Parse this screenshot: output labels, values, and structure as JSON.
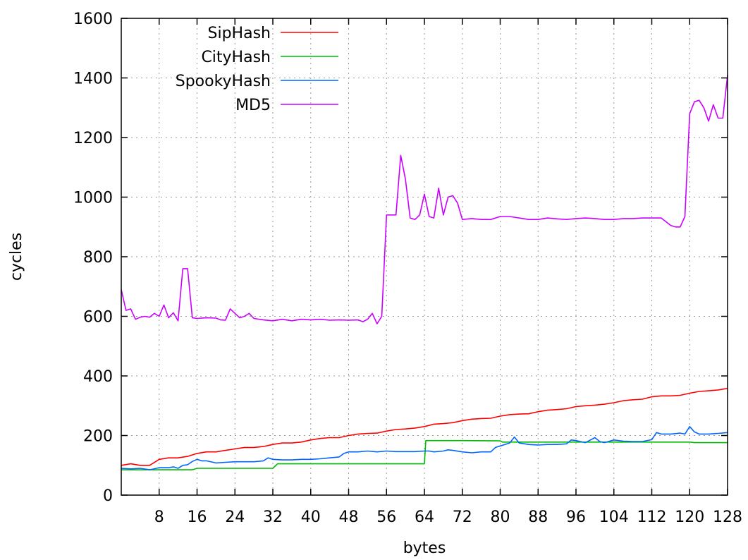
{
  "chart_data": {
    "type": "line",
    "xlabel": "bytes",
    "ylabel": "cycles",
    "xlim": [
      0,
      128
    ],
    "ylim": [
      0,
      1600
    ],
    "xticks": [
      8,
      16,
      24,
      32,
      40,
      48,
      56,
      64,
      72,
      80,
      88,
      96,
      104,
      112,
      120,
      128
    ],
    "yticks": [
      0,
      200,
      400,
      600,
      800,
      1000,
      1200,
      1400,
      1600
    ],
    "grid": true,
    "legend_position": "top-left",
    "series": [
      {
        "name": "SipHash",
        "color": "#ff0000",
        "points": [
          [
            0,
            100
          ],
          [
            2,
            105
          ],
          [
            4,
            100
          ],
          [
            6,
            100
          ],
          [
            8,
            120
          ],
          [
            10,
            125
          ],
          [
            12,
            125
          ],
          [
            14,
            130
          ],
          [
            16,
            140
          ],
          [
            18,
            145
          ],
          [
            20,
            145
          ],
          [
            22,
            150
          ],
          [
            24,
            155
          ],
          [
            26,
            160
          ],
          [
            28,
            160
          ],
          [
            30,
            163
          ],
          [
            32,
            170
          ],
          [
            34,
            175
          ],
          [
            36,
            175
          ],
          [
            38,
            178
          ],
          [
            40,
            185
          ],
          [
            42,
            190
          ],
          [
            44,
            193
          ],
          [
            46,
            193
          ],
          [
            48,
            200
          ],
          [
            50,
            205
          ],
          [
            52,
            207
          ],
          [
            54,
            208
          ],
          [
            56,
            215
          ],
          [
            58,
            220
          ],
          [
            60,
            222
          ],
          [
            62,
            225
          ],
          [
            64,
            230
          ],
          [
            66,
            238
          ],
          [
            68,
            240
          ],
          [
            70,
            243
          ],
          [
            72,
            250
          ],
          [
            74,
            255
          ],
          [
            76,
            257
          ],
          [
            78,
            258
          ],
          [
            80,
            265
          ],
          [
            82,
            270
          ],
          [
            84,
            272
          ],
          [
            86,
            273
          ],
          [
            88,
            280
          ],
          [
            90,
            285
          ],
          [
            92,
            287
          ],
          [
            94,
            290
          ],
          [
            96,
            297
          ],
          [
            98,
            300
          ],
          [
            100,
            302
          ],
          [
            102,
            305
          ],
          [
            104,
            310
          ],
          [
            106,
            317
          ],
          [
            108,
            320
          ],
          [
            110,
            322
          ],
          [
            112,
            330
          ],
          [
            114,
            333
          ],
          [
            116,
            333
          ],
          [
            118,
            335
          ],
          [
            120,
            342
          ],
          [
            122,
            348
          ],
          [
            124,
            350
          ],
          [
            126,
            353
          ],
          [
            128,
            358
          ]
        ]
      },
      {
        "name": "CityHash",
        "color": "#00bb00",
        "points": [
          [
            0,
            85
          ],
          [
            8,
            85
          ],
          [
            15,
            85
          ],
          [
            16,
            90
          ],
          [
            24,
            90
          ],
          [
            32,
            90
          ],
          [
            33,
            105
          ],
          [
            40,
            105
          ],
          [
            48,
            105
          ],
          [
            56,
            105
          ],
          [
            64,
            105
          ],
          [
            64.3,
            183
          ],
          [
            72,
            183
          ],
          [
            80,
            182
          ],
          [
            80.5,
            178
          ],
          [
            88,
            178
          ],
          [
            96,
            178
          ],
          [
            104,
            178
          ],
          [
            112,
            178
          ],
          [
            120,
            178
          ],
          [
            121,
            176
          ],
          [
            128,
            176
          ]
        ]
      },
      {
        "name": "SpookyHash",
        "color": "#0066ff",
        "points": [
          [
            0,
            90
          ],
          [
            2,
            88
          ],
          [
            4,
            90
          ],
          [
            6,
            85
          ],
          [
            8,
            92
          ],
          [
            10,
            92
          ],
          [
            11,
            95
          ],
          [
            12,
            90
          ],
          [
            13,
            100
          ],
          [
            14,
            102
          ],
          [
            15,
            113
          ],
          [
            16,
            120
          ],
          [
            17,
            115
          ],
          [
            18,
            115
          ],
          [
            20,
            108
          ],
          [
            22,
            110
          ],
          [
            24,
            112
          ],
          [
            26,
            112
          ],
          [
            28,
            112
          ],
          [
            30,
            115
          ],
          [
            31,
            125
          ],
          [
            32,
            120
          ],
          [
            34,
            118
          ],
          [
            36,
            118
          ],
          [
            38,
            120
          ],
          [
            40,
            120
          ],
          [
            42,
            122
          ],
          [
            44,
            125
          ],
          [
            46,
            128
          ],
          [
            47,
            140
          ],
          [
            48,
            145
          ],
          [
            50,
            145
          ],
          [
            52,
            148
          ],
          [
            54,
            145
          ],
          [
            56,
            148
          ],
          [
            58,
            146
          ],
          [
            60,
            146
          ],
          [
            62,
            146
          ],
          [
            64,
            148
          ],
          [
            65,
            148
          ],
          [
            66,
            145
          ],
          [
            68,
            148
          ],
          [
            69,
            152
          ],
          [
            70,
            150
          ],
          [
            72,
            145
          ],
          [
            74,
            142
          ],
          [
            76,
            145
          ],
          [
            78,
            145
          ],
          [
            79,
            160
          ],
          [
            80,
            165
          ],
          [
            82,
            175
          ],
          [
            83,
            195
          ],
          [
            84,
            175
          ],
          [
            86,
            170
          ],
          [
            88,
            168
          ],
          [
            90,
            170
          ],
          [
            92,
            170
          ],
          [
            94,
            172
          ],
          [
            95,
            185
          ],
          [
            96,
            183
          ],
          [
            98,
            176
          ],
          [
            100,
            193
          ],
          [
            101,
            180
          ],
          [
            102,
            176
          ],
          [
            104,
            185
          ],
          [
            106,
            181
          ],
          [
            108,
            180
          ],
          [
            110,
            180
          ],
          [
            112,
            186
          ],
          [
            113,
            210
          ],
          [
            114,
            205
          ],
          [
            116,
            205
          ],
          [
            118,
            208
          ],
          [
            119,
            205
          ],
          [
            120,
            230
          ],
          [
            121,
            212
          ],
          [
            122,
            205
          ],
          [
            124,
            205
          ],
          [
            126,
            207
          ],
          [
            128,
            210
          ]
        ]
      },
      {
        "name": "MD5",
        "color": "#cc00ff",
        "points": [
          [
            0,
            690
          ],
          [
            1,
            620
          ],
          [
            2,
            625
          ],
          [
            3,
            590
          ],
          [
            4,
            597
          ],
          [
            5,
            600
          ],
          [
            6,
            597
          ],
          [
            7,
            610
          ],
          [
            8,
            600
          ],
          [
            9,
            638
          ],
          [
            10,
            595
          ],
          [
            11,
            612
          ],
          [
            12,
            585
          ],
          [
            13,
            760
          ],
          [
            14,
            760
          ],
          [
            15,
            595
          ],
          [
            16,
            593
          ],
          [
            18,
            595
          ],
          [
            20,
            594
          ],
          [
            21,
            588
          ],
          [
            22,
            587
          ],
          [
            23,
            625
          ],
          [
            24,
            610
          ],
          [
            25,
            595
          ],
          [
            26,
            600
          ],
          [
            27,
            610
          ],
          [
            28,
            593
          ],
          [
            30,
            588
          ],
          [
            32,
            585
          ],
          [
            34,
            590
          ],
          [
            36,
            585
          ],
          [
            38,
            590
          ],
          [
            40,
            588
          ],
          [
            42,
            590
          ],
          [
            44,
            587
          ],
          [
            46,
            588
          ],
          [
            48,
            587
          ],
          [
            50,
            588
          ],
          [
            51,
            582
          ],
          [
            52,
            590
          ],
          [
            53,
            610
          ],
          [
            54,
            575
          ],
          [
            55,
            600
          ],
          [
            56,
            940
          ],
          [
            57,
            940
          ],
          [
            58,
            940
          ],
          [
            59,
            1140
          ],
          [
            60,
            1060
          ],
          [
            61,
            930
          ],
          [
            62,
            925
          ],
          [
            63,
            940
          ],
          [
            64,
            1010
          ],
          [
            65,
            935
          ],
          [
            66,
            930
          ],
          [
            67,
            1030
          ],
          [
            68,
            940
          ],
          [
            69,
            1000
          ],
          [
            70,
            1005
          ],
          [
            71,
            980
          ],
          [
            72,
            925
          ],
          [
            74,
            928
          ],
          [
            76,
            925
          ],
          [
            78,
            925
          ],
          [
            80,
            935
          ],
          [
            82,
            935
          ],
          [
            84,
            930
          ],
          [
            86,
            925
          ],
          [
            88,
            925
          ],
          [
            90,
            930
          ],
          [
            92,
            927
          ],
          [
            94,
            925
          ],
          [
            96,
            928
          ],
          [
            98,
            930
          ],
          [
            100,
            928
          ],
          [
            102,
            925
          ],
          [
            104,
            925
          ],
          [
            106,
            928
          ],
          [
            108,
            928
          ],
          [
            110,
            930
          ],
          [
            112,
            930
          ],
          [
            114,
            930
          ],
          [
            116,
            905
          ],
          [
            117,
            900
          ],
          [
            118,
            900
          ],
          [
            119,
            935
          ],
          [
            120,
            1280
          ],
          [
            121,
            1320
          ],
          [
            122,
            1325
          ],
          [
            123,
            1300
          ],
          [
            124,
            1255
          ],
          [
            125,
            1310
          ],
          [
            126,
            1265
          ],
          [
            127,
            1265
          ],
          [
            128,
            1410
          ]
        ]
      }
    ]
  }
}
